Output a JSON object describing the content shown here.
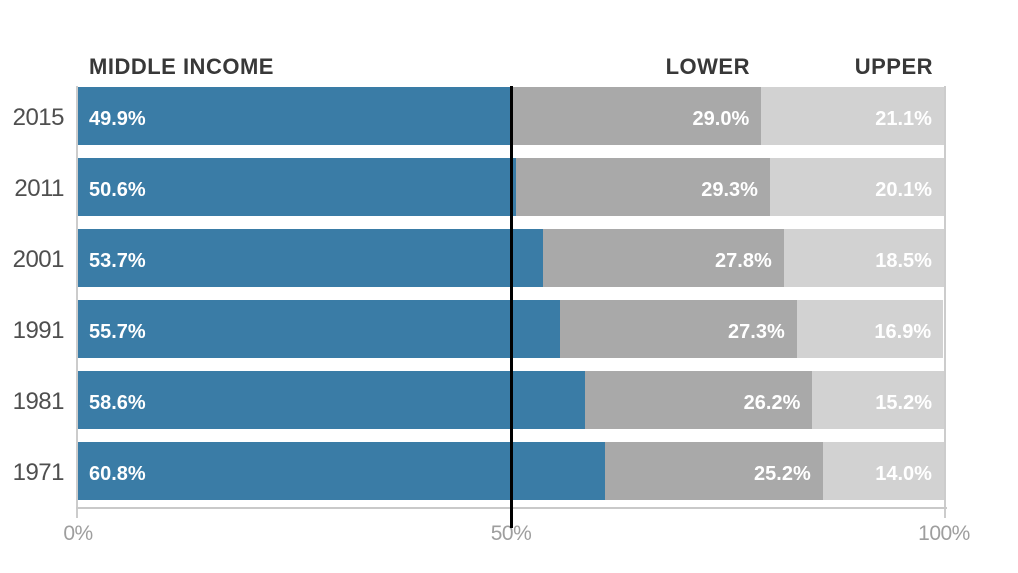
{
  "headers": {
    "middle": "MIDDLE INCOME",
    "lower": "LOWER",
    "upper": "UPPER"
  },
  "colors": {
    "middle_income_bar": "#3a7ca6",
    "lower_bar": "#a9a9a9",
    "upper_bar": "#d2d2d2",
    "reference_line": "#000000",
    "axis_line": "#c9c9c9",
    "header_text": "#383838",
    "year_text": "#4f4f4f",
    "tick_text": "#9e9e9e",
    "value_text": "#ffffff"
  },
  "chart_data": {
    "type": "bar",
    "orientation": "horizontal",
    "stacked": true,
    "title": "",
    "xlabel": "",
    "ylabel": "",
    "xlim": [
      0,
      100
    ],
    "grid": false,
    "legend_position": "column-headers-above-bars",
    "categories": [
      "2015",
      "2011",
      "2001",
      "1991",
      "1981",
      "1971"
    ],
    "series": [
      {
        "key": "middle-income",
        "name": "MIDDLE INCOME",
        "color": "#3a7ca6",
        "values": [
          49.9,
          50.6,
          53.7,
          55.7,
          58.6,
          60.8
        ],
        "labels": [
          "49.9%",
          "50.6%",
          "53.7%",
          "55.7%",
          "58.6%",
          "60.8%"
        ]
      },
      {
        "key": "lower",
        "name": "LOWER",
        "color": "#a9a9a9",
        "values": [
          29.0,
          29.3,
          27.8,
          27.3,
          26.2,
          25.2
        ],
        "labels": [
          "29.0%",
          "29.3%",
          "27.8%",
          "27.3%",
          "26.2%",
          "25.2%"
        ]
      },
      {
        "key": "upper",
        "name": "UPPER",
        "color": "#d2d2d2",
        "values": [
          21.1,
          20.1,
          18.5,
          16.9,
          15.2,
          14.0
        ],
        "labels": [
          "21.1%",
          "20.1%",
          "18.5%",
          "16.9%",
          "15.2%",
          "14.0%"
        ]
      }
    ],
    "x_ticks": [
      {
        "label": "0%",
        "value": 0
      },
      {
        "label": "50%",
        "value": 50
      },
      {
        "label": "100%",
        "value": 100
      }
    ],
    "reference_line": {
      "value": 50,
      "color": "#000000"
    }
  }
}
